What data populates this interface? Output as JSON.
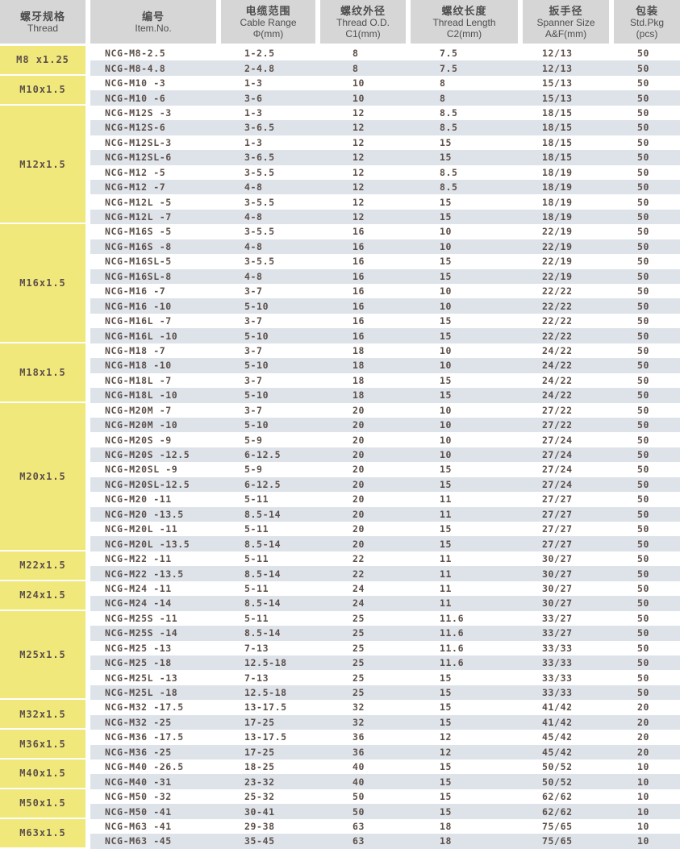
{
  "colors": {
    "group_cell_yellow": "#f0e87b",
    "stripe_blue_gray": "#dde3e9",
    "header_gray": "#d6d6d6",
    "text_brown_gray": "#5d4f4a"
  },
  "table": {
    "columns": [
      {
        "zh": "螺牙规格",
        "en": "Thread",
        "sub": ""
      },
      {
        "zh": "编号",
        "en": "Item.No.",
        "sub": ""
      },
      {
        "zh": "电缆范围",
        "en": "Cable Range",
        "sub": "Φ(mm)"
      },
      {
        "zh": "螺纹外径",
        "en": "Thread O.D.",
        "sub": "C1(mm)"
      },
      {
        "zh": "螺纹长度",
        "en": "Thread Length",
        "sub": "C2(mm)"
      },
      {
        "zh": "扳手径",
        "en": "Spanner Size",
        "sub": "A&F(mm)"
      },
      {
        "zh": "包装",
        "en": "Std.Pkg",
        "sub": "(pcs)"
      }
    ],
    "groups": [
      {
        "thread": "M8 x1.25",
        "rows": [
          [
            "NCG-M8-2.5",
            "1-2.5",
            "8",
            "7.5",
            "12/13",
            "50"
          ],
          [
            "NCG-M8-4.8",
            "2-4.8",
            "8",
            "7.5",
            "12/13",
            "50"
          ]
        ]
      },
      {
        "thread": "M10x1.5",
        "rows": [
          [
            "NCG-M10 -3",
            "1-3",
            "10",
            "8",
            "15/13",
            "50"
          ],
          [
            "NCG-M10 -6",
            "3-6",
            "10",
            "8",
            "15/13",
            "50"
          ]
        ]
      },
      {
        "thread": "M12x1.5",
        "rows": [
          [
            "NCG-M12S -3",
            "1-3",
            "12",
            "8.5",
            "18/15",
            "50"
          ],
          [
            "NCG-M12S-6",
            "3-6.5",
            "12",
            "8.5",
            "18/15",
            "50"
          ],
          [
            "NCG-M12SL-3",
            "1-3",
            "12",
            "15",
            "18/15",
            "50"
          ],
          [
            "NCG-M12SL-6",
            "3-6.5",
            "12",
            "15",
            "18/15",
            "50"
          ],
          [
            "NCG-M12 -5",
            "3-5.5",
            "12",
            "8.5",
            "18/19",
            "50"
          ],
          [
            "NCG-M12 -7",
            "4-8",
            "12",
            "8.5",
            "18/19",
            "50"
          ],
          [
            "NCG-M12L -5",
            "3-5.5",
            "12",
            "15",
            "18/19",
            "50"
          ],
          [
            "NCG-M12L -7",
            "4-8",
            "12",
            "15",
            "18/19",
            "50"
          ]
        ]
      },
      {
        "thread": "M16x1.5",
        "rows": [
          [
            "NCG-M16S -5",
            "3-5.5",
            "16",
            "10",
            "22/19",
            "50"
          ],
          [
            "NCG-M16S -8",
            "4-8",
            "16",
            "10",
            "22/19",
            "50"
          ],
          [
            "NCG-M16SL-5",
            "3-5.5",
            "16",
            "15",
            "22/19",
            "50"
          ],
          [
            "NCG-M16SL-8",
            "4-8",
            "16",
            "15",
            "22/19",
            "50"
          ],
          [
            "NCG-M16 -7",
            "3-7",
            "16",
            "10",
            "22/22",
            "50"
          ],
          [
            "NCG-M16 -10",
            "5-10",
            "16",
            "10",
            "22/22",
            "50"
          ],
          [
            "NCG-M16L -7",
            "3-7",
            "16",
            "15",
            "22/22",
            "50"
          ],
          [
            "NCG-M16L -10",
            "5-10",
            "16",
            "15",
            "22/22",
            "50"
          ]
        ]
      },
      {
        "thread": "M18x1.5",
        "rows": [
          [
            "NCG-M18 -7",
            "3-7",
            "18",
            "10",
            "24/22",
            "50"
          ],
          [
            "NCG-M18 -10",
            "5-10",
            "18",
            "10",
            "24/22",
            "50"
          ],
          [
            "NCG-M18L -7",
            "3-7",
            "18",
            "15",
            "24/22",
            "50"
          ],
          [
            "NCG-M18L -10",
            "5-10",
            "18",
            "15",
            "24/22",
            "50"
          ]
        ]
      },
      {
        "thread": "M20x1.5",
        "rows": [
          [
            "NCG-M20M -7",
            "3-7",
            "20",
            "10",
            "27/22",
            "50"
          ],
          [
            "NCG-M20M -10",
            "5-10",
            "20",
            "10",
            "27/22",
            "50"
          ],
          [
            "NCG-M20S -9",
            "5-9",
            "20",
            "10",
            "27/24",
            "50"
          ],
          [
            "NCG-M20S -12.5",
            "6-12.5",
            "20",
            "10",
            "27/24",
            "50"
          ],
          [
            "NCG-M20SL -9",
            "5-9",
            "20",
            "15",
            "27/24",
            "50"
          ],
          [
            "NCG-M20SL-12.5",
            "6-12.5",
            "20",
            "15",
            "27/24",
            "50"
          ],
          [
            "NCG-M20 -11",
            "5-11",
            "20",
            "11",
            "27/27",
            "50"
          ],
          [
            "NCG-M20 -13.5",
            "8.5-14",
            "20",
            "11",
            "27/27",
            "50"
          ],
          [
            "NCG-M20L -11",
            "5-11",
            "20",
            "15",
            "27/27",
            "50"
          ],
          [
            "NCG-M20L -13.5",
            "8.5-14",
            "20",
            "15",
            "27/27",
            "50"
          ]
        ]
      },
      {
        "thread": "M22x1.5",
        "rows": [
          [
            "NCG-M22 -11",
            "5-11",
            "22",
            "11",
            "30/27",
            "50"
          ],
          [
            "NCG-M22 -13.5",
            "8.5-14",
            "22",
            "11",
            "30/27",
            "50"
          ]
        ]
      },
      {
        "thread": "M24x1.5",
        "rows": [
          [
            "NCG-M24 -11",
            "5-11",
            "24",
            "11",
            "30/27",
            "50"
          ],
          [
            "NCG-M24 -14",
            "8.5-14",
            "24",
            "11",
            "30/27",
            "50"
          ]
        ]
      },
      {
        "thread": "M25x1.5",
        "rows": [
          [
            "NCG-M25S -11",
            "5-11",
            "25",
            "11.6",
            "33/27",
            "50"
          ],
          [
            "NCG-M25S -14",
            "8.5-14",
            "25",
            "11.6",
            "33/27",
            "50"
          ],
          [
            "NCG-M25 -13",
            "7-13",
            "25",
            "11.6",
            "33/33",
            "50"
          ],
          [
            "NCG-M25 -18",
            "12.5-18",
            "25",
            "11.6",
            "33/33",
            "50"
          ],
          [
            "NCG-M25L -13",
            "7-13",
            "25",
            "15",
            "33/33",
            "50"
          ],
          [
            "NCG-M25L -18",
            "12.5-18",
            "25",
            "15",
            "33/33",
            "50"
          ]
        ]
      },
      {
        "thread": "M32x1.5",
        "rows": [
          [
            "NCG-M32 -17.5",
            "13-17.5",
            "32",
            "15",
            "41/42",
            "20"
          ],
          [
            "NCG-M32 -25",
            "17-25",
            "32",
            "15",
            "41/42",
            "20"
          ]
        ]
      },
      {
        "thread": "M36x1.5",
        "rows": [
          [
            "NCG-M36 -17.5",
            "13-17.5",
            "36",
            "12",
            "45/42",
            "20"
          ],
          [
            "NCG-M36 -25",
            "17-25",
            "36",
            "12",
            "45/42",
            "20"
          ]
        ]
      },
      {
        "thread": "M40x1.5",
        "rows": [
          [
            "NCG-M40 -26.5",
            "18-25",
            "40",
            "15",
            "50/52",
            "10"
          ],
          [
            "NCG-M40 -31",
            "23-32",
            "40",
            "15",
            "50/52",
            "10"
          ]
        ]
      },
      {
        "thread": "M50x1.5",
        "rows": [
          [
            "NCG-M50 -32",
            "25-32",
            "50",
            "15",
            "62/62",
            "10"
          ],
          [
            "NCG-M50 -41",
            "30-41",
            "50",
            "15",
            "62/62",
            "10"
          ]
        ]
      },
      {
        "thread": "M63x1.5",
        "rows": [
          [
            "NCG-M63 -41",
            "29-38",
            "63",
            "18",
            "75/65",
            "10"
          ],
          [
            "NCG-M63 -45",
            "35-45",
            "63",
            "18",
            "75/65",
            "10"
          ]
        ]
      }
    ]
  }
}
